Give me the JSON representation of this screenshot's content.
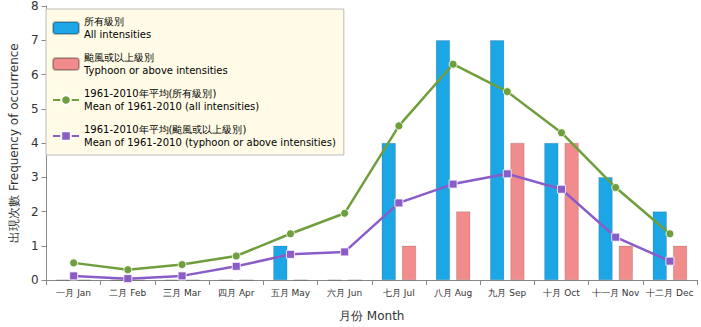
{
  "chart_data": {
    "type": "bar",
    "x_label": "月份 Month",
    "y_label": "出現次數 Frequency of occurrence",
    "categories": [
      "一月 Jan",
      "二月 Feb",
      "三月 Mar",
      "四月 Apr",
      "五月 May",
      "六月 Jun",
      "七月 Jul",
      "八月 Aug",
      "九月 Sep",
      "十月 Oct",
      "十一月 Nov",
      "十二月 Dec"
    ],
    "series": [
      {
        "name": "所有級別\nAll intensities",
        "type": "bar",
        "color": "#1ca6e6",
        "values": [
          0,
          0,
          0,
          0,
          1,
          0,
          4,
          7,
          7,
          4,
          3,
          2
        ]
      },
      {
        "name": "颱風或以上級別\nTyphoon or above intensities",
        "type": "bar",
        "color": "#f08c8c",
        "values": [
          0,
          0,
          0,
          0,
          0,
          0,
          1,
          2,
          4,
          4,
          1,
          1
        ]
      },
      {
        "name": "1961-2010年平均(所有級別)\nMean of 1961-2010 (all intensities)",
        "type": "line",
        "color": "#6f9f3c",
        "marker": "circle",
        "values": [
          0.5,
          0.3,
          0.45,
          0.7,
          1.35,
          1.95,
          4.5,
          6.3,
          5.5,
          4.3,
          2.7,
          1.35
        ]
      },
      {
        "name": "1961-2010年平均(颱風或以上級別)\nMean of 1961-2010 (typhoon or above intensities)",
        "type": "line",
        "color": "#8a5cc8",
        "marker": "square",
        "values": [
          0.12,
          0.04,
          0.12,
          0.4,
          0.75,
          0.82,
          2.25,
          2.8,
          3.1,
          2.65,
          1.25,
          0.55
        ]
      }
    ],
    "ylim": [
      0,
      8
    ],
    "yticks": [
      0,
      1,
      2,
      3,
      4,
      5,
      6,
      7,
      8
    ],
    "grid": false,
    "legend": "upper left"
  }
}
